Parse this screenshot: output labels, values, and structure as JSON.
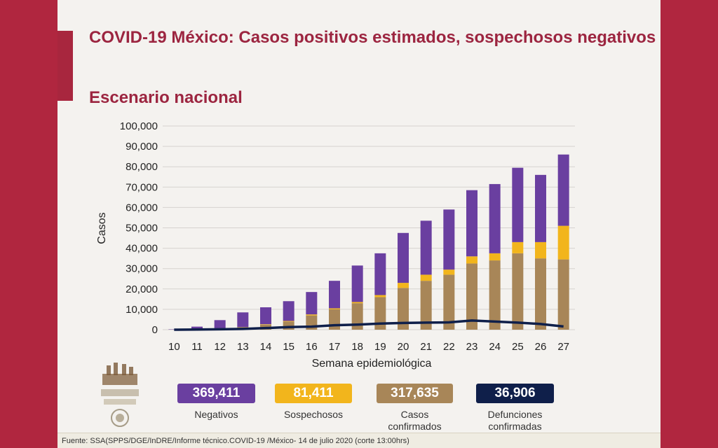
{
  "chart_data": {
    "type": "bar",
    "stacked": true,
    "title": "COVID-19 México: Casos positivos estimados, sospechosos negativos",
    "subtitle": "Escenario nacional",
    "xlabel": "Semana epidemiológica",
    "ylabel": "Casos",
    "ylim": [
      0,
      100000
    ],
    "yticks": [
      0,
      10000,
      20000,
      30000,
      40000,
      50000,
      60000,
      70000,
      80000,
      90000,
      100000
    ],
    "ytick_labels": [
      "0",
      "10,000",
      "20,000",
      "30,000",
      "40,000",
      "50,000",
      "60,000",
      "70,000",
      "80,000",
      "90,000",
      "100,000"
    ],
    "grid": true,
    "categories": [
      "10",
      "11",
      "12",
      "13",
      "14",
      "15",
      "16",
      "17",
      "18",
      "19",
      "20",
      "21",
      "22",
      "23",
      "24",
      "25",
      "26",
      "27"
    ],
    "series": [
      {
        "name": "Casos confirmados",
        "color": "#a88658",
        "values": [
          50,
          250,
          600,
          1200,
          2500,
          4000,
          7000,
          10000,
          13000,
          16000,
          20500,
          24000,
          27000,
          32500,
          34000,
          37500,
          35000,
          34500
        ]
      },
      {
        "name": "Sospechosos",
        "color": "#f2b51c",
        "values": [
          0,
          0,
          100,
          100,
          200,
          300,
          500,
          500,
          600,
          1000,
          2500,
          3000,
          2500,
          3500,
          3500,
          5500,
          8000,
          16500
        ]
      },
      {
        "name": "Negativos",
        "color": "#6a3fa0",
        "values": [
          150,
          1250,
          4000,
          7200,
          8300,
          9700,
          11000,
          13500,
          17900,
          20500,
          24500,
          26500,
          29500,
          32500,
          34000,
          36500,
          33000,
          35000
        ]
      },
      {
        "name": "Defunciones",
        "type": "line",
        "color": "#0f1f4a",
        "values": [
          0,
          100,
          200,
          400,
          800,
          1300,
          1500,
          2200,
          2500,
          3000,
          3300,
          3500,
          3600,
          4500,
          4000,
          3500,
          2800,
          1600
        ]
      }
    ]
  },
  "summary": [
    {
      "value": "369,411",
      "label": "Negativos"
    },
    {
      "value": "81,411",
      "label": "Sospechosos"
    },
    {
      "value": "317,635",
      "label_line1": "Casos",
      "label_line2": "confirmados"
    },
    {
      "value": "36,906",
      "label_line1": "Defunciones",
      "label_line2": "confirmadas"
    }
  ],
  "footer": {
    "source": "Fuente: SSA(SPPS/DGE/InDRE/Informe técnico.COVID-19 /México- 14 de julio 2020 (corte 13:00hrs)"
  }
}
